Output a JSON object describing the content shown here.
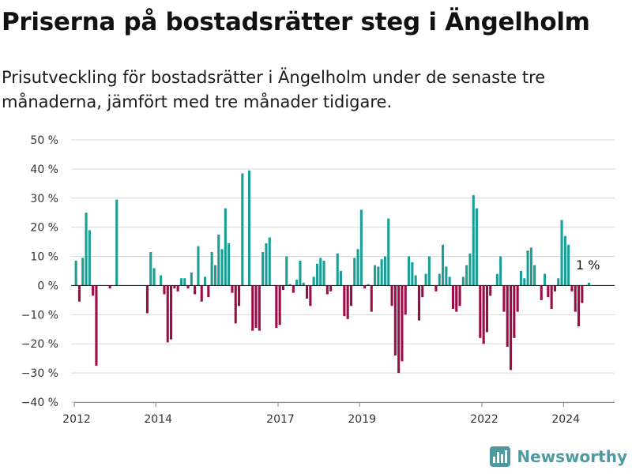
{
  "chart_data": {
    "type": "bar",
    "title": "Priserna på bostadsrätter steg i Ängelholm",
    "subtitle": "Prisutveckling för bostadsrätter i Ängelholm under de senaste tre månaderna, jämfört med tre månader tidigare.",
    "xlabel": "",
    "ylabel": "",
    "ylim": [
      -40,
      50
    ],
    "yticks": [
      -40,
      -30,
      -20,
      -10,
      0,
      10,
      20,
      30,
      40,
      50
    ],
    "ytick_labels": [
      "−40 %",
      "−30 %",
      "−20 %",
      "−10 %",
      "0 %",
      "10 %",
      "20 %",
      "30 %",
      "40 %",
      "50 %"
    ],
    "xticks": [
      "2012",
      "2014",
      "2017",
      "2019",
      "2022",
      "2024"
    ],
    "grid": true,
    "colors": {
      "positive": "#1a9e96",
      "negative": "#9c0c48"
    },
    "last_value_label": "1 %",
    "values": [
      8.5,
      -5.5,
      9.5,
      25.0,
      19.0,
      -3.5,
      -27.5,
      0.0,
      0.0,
      0.0,
      -1.0,
      0.0,
      29.5,
      0.0,
      0.0,
      0.0,
      0.0,
      0.0,
      0.0,
      0.0,
      0.0,
      -9.5,
      11.5,
      6.0,
      0.0,
      3.5,
      -3.0,
      -19.5,
      -18.5,
      -1.0,
      -2.0,
      2.5,
      2.5,
      -1.0,
      4.5,
      -3.0,
      13.5,
      -5.5,
      3.0,
      -4.0,
      11.5,
      7.0,
      17.5,
      12.5,
      26.5,
      14.5,
      -2.5,
      -13.0,
      -7.0,
      38.5,
      0.0,
      39.5,
      -15.5,
      -14.5,
      -15.5,
      11.5,
      14.5,
      16.5,
      0.0,
      -14.5,
      -13.5,
      -1.5,
      10.0,
      0.5,
      -2.5,
      2.0,
      8.5,
      1.0,
      -4.5,
      -7.0,
      3.0,
      7.5,
      9.5,
      8.5,
      -3.0,
      -2.0,
      0.0,
      11.0,
      5.0,
      -10.5,
      -11.5,
      -7.0,
      9.5,
      12.5,
      26.0,
      -1.0,
      0.5,
      -9.0,
      7.0,
      6.5,
      9.0,
      10.0,
      23.0,
      -7.0,
      -24.0,
      -30.0,
      -26.0,
      -10.0,
      10.0,
      8.0,
      3.5,
      -12.0,
      -4.0,
      4.0,
      10.0,
      0.0,
      -2.0,
      4.0,
      14.0,
      6.5,
      3.0,
      -8.0,
      -9.0,
      -7.0,
      3.0,
      7.0,
      11.0,
      31.0,
      26.5,
      -18.0,
      -20.0,
      -16.0,
      -3.5,
      0.0,
      4.0,
      10.0,
      -9.0,
      -21.0,
      -29.0,
      -18.0,
      -9.0,
      5.0,
      2.5,
      12.0,
      13.0,
      7.0,
      0.0,
      -5.0,
      4.0,
      -4.0,
      -8.0,
      -2.0,
      2.5,
      22.5,
      17.0,
      14.0,
      -2.0,
      -9.0,
      -14.0,
      -6.0,
      0.0,
      1.0
    ]
  }
}
